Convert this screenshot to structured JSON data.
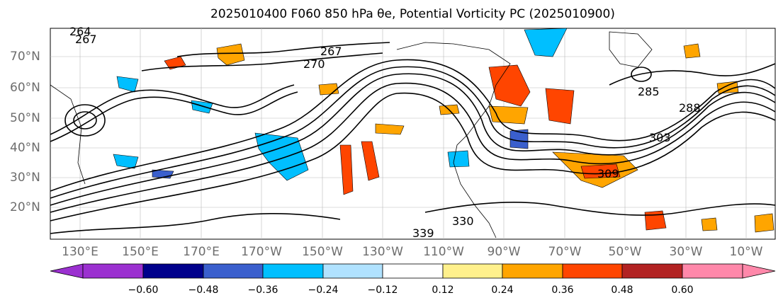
{
  "title": "2025010400 F060 850 hPa θe, Potential Vorticity PC (2025010900)",
  "latitude_labels": [
    "70°N",
    "60°N",
    "50°N",
    "40°N",
    "30°N",
    "20°N"
  ],
  "longitude_labels": [
    "130°E",
    "150°E",
    "170°E",
    "170°W",
    "150°W",
    "130°W",
    "110°W",
    "90°W",
    "70°W",
    "50°W",
    "30°W",
    "10°W"
  ],
  "contour_labels": [
    "264",
    "267",
    "267",
    "270",
    "285",
    "288",
    "309",
    "339",
    "330",
    "303"
  ],
  "colorbar": {
    "ticks": [
      "−0.60",
      "−0.48",
      "−0.36",
      "−0.24",
      "−0.12",
      "0.12",
      "0.24",
      "0.36",
      "0.48",
      "0.60"
    ],
    "colors": [
      "#9b30d0",
      "#00008b",
      "#3a5fcd",
      "#00bfff",
      "#b0e2ff",
      "#ffffff",
      "#fff08c",
      "#ffa500",
      "#ff4500",
      "#b22222",
      "#ff88aa"
    ]
  }
}
